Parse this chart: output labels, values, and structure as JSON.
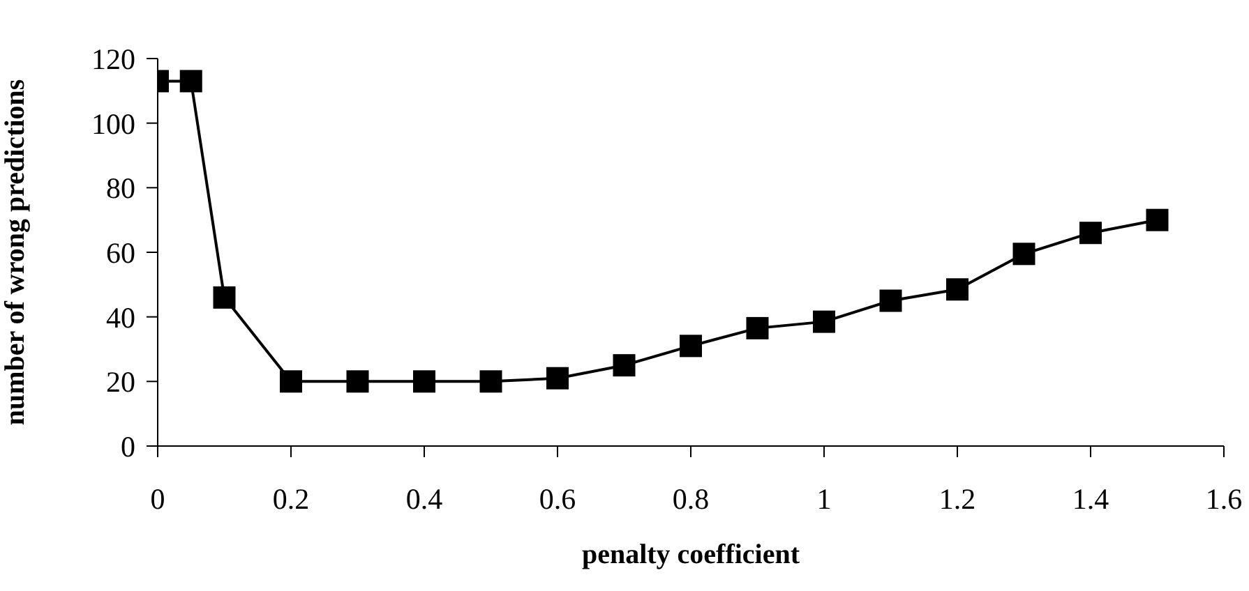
{
  "chart_data": {
    "type": "line",
    "xlabel": "penalty coefficient",
    "ylabel": "number of wrong predictions",
    "x": [
      0,
      0.05,
      0.1,
      0.2,
      0.3,
      0.4,
      0.5,
      0.6,
      0.7,
      0.8,
      0.9,
      1.0,
      1.1,
      1.2,
      1.3,
      1.4,
      1.5
    ],
    "series": [
      {
        "color": "#000000",
        "values": [
          113,
          113,
          46,
          20,
          20,
          20,
          20,
          21,
          25,
          31,
          36.5,
          38.5,
          45,
          48.5,
          59.5,
          66,
          70
        ]
      }
    ],
    "xlim": [
      0,
      1.6
    ],
    "xticks": [
      0,
      0.2,
      0.4,
      0.6,
      0.8,
      1,
      1.2,
      1.4,
      1.6
    ],
    "ylim": [
      0,
      120
    ],
    "yticks": [
      0,
      20,
      40,
      60,
      80,
      100,
      120
    ],
    "grid": false,
    "legend": false,
    "marker": "square",
    "line_style": "solid"
  }
}
